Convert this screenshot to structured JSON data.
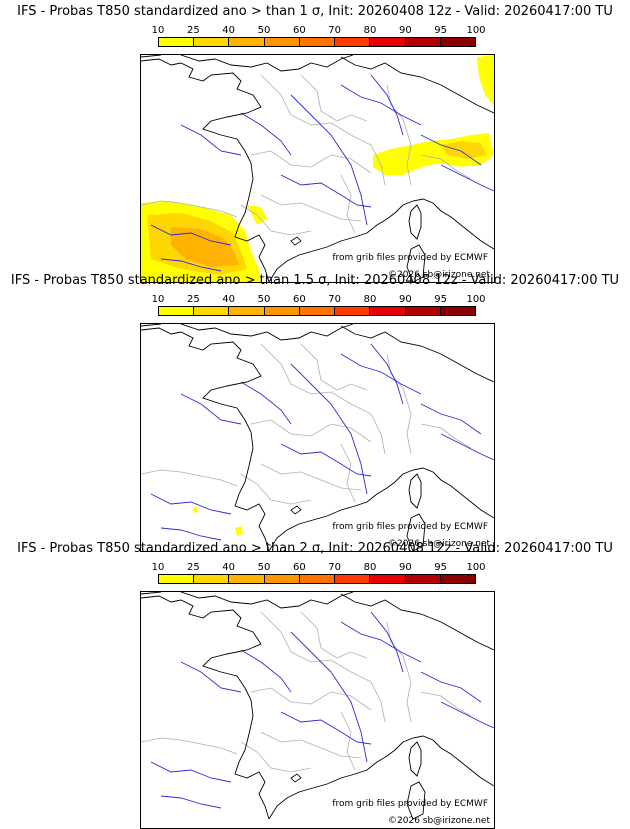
{
  "panels": [
    {
      "title": "IFS - Probas T850  standardized ano > than 1 σ, Init: 20260408 12z - Valid: 20260417:00 TU"
    },
    {
      "title": "IFS - Probas T850  standardized ano > than 1.5 σ, Init: 20260408 12z - Valid: 20260417:00 TU"
    },
    {
      "title": "IFS - Probas T850  standardized ano > than 2 σ, Init: 20260408 12z - Valid: 20260417:00 TU"
    }
  ],
  "legend": {
    "ticks": [
      "10",
      "25",
      "40",
      "50",
      "60",
      "70",
      "80",
      "90",
      "95",
      "100"
    ],
    "colors": [
      "#ffff00",
      "#ffd700",
      "#ffb300",
      "#ff9500",
      "#ff7300",
      "#ff3b00",
      "#e60000",
      "#b00000",
      "#8a0000",
      "#4d0000"
    ]
  },
  "credits": {
    "source": "from grib files provided by ECMWF",
    "copyright": "©2026 sb@irizone.net"
  },
  "colors": {
    "coast": "#000000",
    "rivers": "#2b2bd6",
    "borders": "#b0b0b0",
    "prob_low": "#ffff00",
    "prob_mid": "#ffd700",
    "prob_high": "#ffb300"
  }
}
